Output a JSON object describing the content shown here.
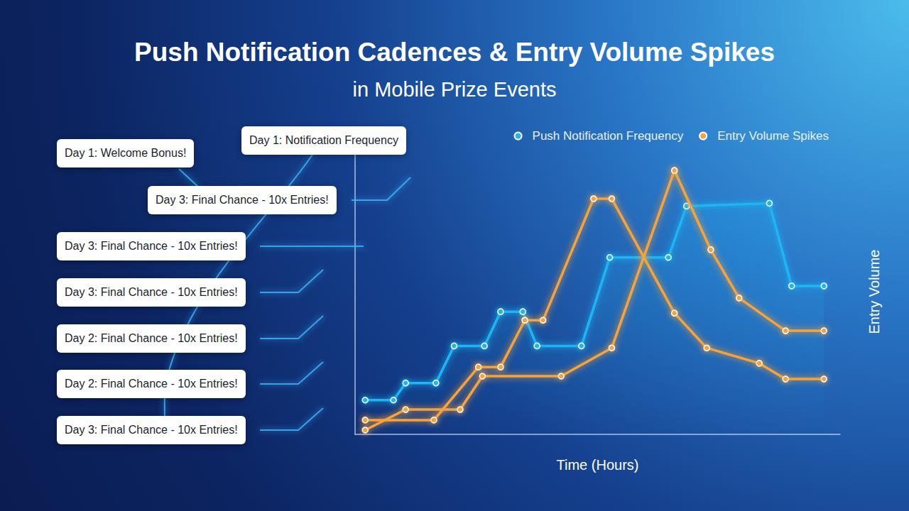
{
  "chart_data": {
    "type": "line",
    "title": "Push Notification Cadences & Entry Volume Spikes",
    "subtitle": "in Mobile Prize Events",
    "x_label": "Time (Hours)",
    "y_label": "Entry Volume",
    "xlim": [
      0,
      24
    ],
    "ylim": [
      0,
      100
    ],
    "grid": false,
    "tick_labels": false,
    "legend": "top-right",
    "series": [
      {
        "name": "Push Notification Frequency",
        "color": "#1fb5f5",
        "marker": "circle",
        "line_style": "solid",
        "x": [
          0.5,
          1.9,
          2.5,
          4.0,
          4.9,
          6.4,
          7.2,
          8.3,
          9.0,
          11.2,
          12.6,
          15.5,
          16.4,
          20.5,
          21.6,
          23.2
        ],
        "values": [
          12,
          12,
          18,
          18,
          31,
          31,
          43,
          43,
          31,
          31,
          62,
          62,
          80,
          81,
          52,
          52
        ]
      },
      {
        "name": "Entry Volume Spikes",
        "color": "#f7a23b",
        "marker": "circle",
        "line_style": "solid",
        "x": [
          0.5,
          3.9,
          6.1,
          7.2,
          8.4,
          9.3,
          11.8,
          12.7,
          15.8,
          17.4,
          20.0,
          21.3,
          23.2
        ],
        "values": [
          5,
          5,
          23.6,
          23.6,
          40,
          40,
          82.6,
          82.6,
          42.5,
          30.3,
          24.9,
          19.4,
          19.4
        ]
      },
      {
        "name": "Entry Volume Spikes",
        "color": "#f7a23b",
        "marker": "circle",
        "line_style": "solid",
        "x": [
          0.5,
          2.5,
          5.2,
          6.3,
          10.2,
          12.7,
          15.8,
          17.6,
          19.0,
          21.3,
          23.2
        ],
        "values": [
          1.5,
          8.7,
          8.7,
          20.4,
          20.4,
          30.3,
          92.5,
          64.7,
          47.8,
          36.3,
          36.3
        ]
      }
    ],
    "annotations": [
      "Day 1: Welcome Bonus!",
      "Day 1: Notification Frequency",
      "Day 3: Final Chance - 10x Entries!",
      "Day 3: Final Chance - 10x Entries!",
      "Day 3: Final Chance - 10x Entries!",
      "Day 2: Final Chance - 10x Entries!",
      "Day 2: Final Chance - 10x Entries!",
      "Day 3: Final Chance - 10x Entries!"
    ]
  }
}
